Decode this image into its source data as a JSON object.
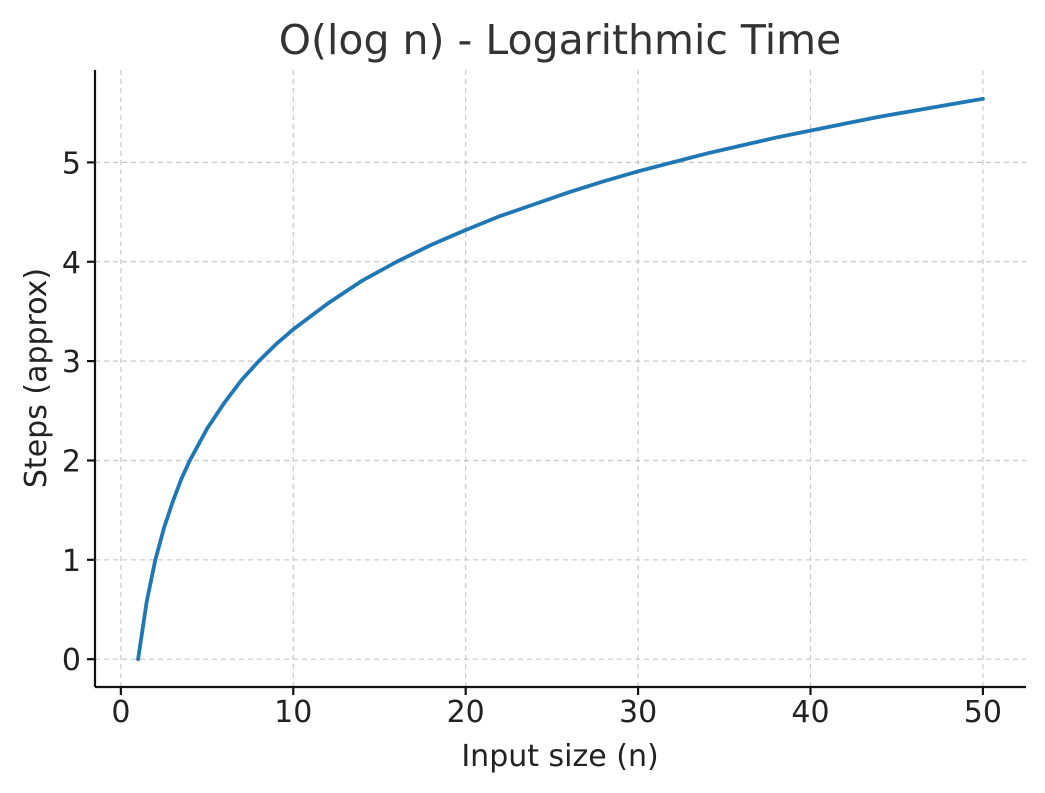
{
  "chart_data": {
    "type": "line",
    "title": "O(log n) - Logarithmic Time",
    "xlabel": "Input size (n)",
    "ylabel": "Steps (approx)",
    "xlim": [
      -1.5,
      52.5
    ],
    "ylim": [
      -0.28,
      5.93
    ],
    "xticks": [
      0,
      10,
      20,
      30,
      40,
      50
    ],
    "yticks": [
      0,
      1,
      2,
      3,
      4,
      5
    ],
    "grid": true,
    "legend": "none",
    "series": [
      {
        "color": "#1f77b4",
        "x": [
          1,
          1.5,
          2,
          2.5,
          3,
          3.5,
          4,
          5,
          6,
          7,
          8,
          9,
          10,
          12,
          14,
          16,
          18,
          20,
          22,
          24,
          26,
          28,
          30,
          32,
          34,
          36,
          38,
          40,
          42,
          44,
          46,
          48,
          50
        ],
        "y": [
          0,
          0.58,
          1.0,
          1.32,
          1.58,
          1.81,
          2.0,
          2.32,
          2.58,
          2.81,
          3.0,
          3.17,
          3.32,
          3.58,
          3.81,
          4.0,
          4.17,
          4.32,
          4.46,
          4.58,
          4.7,
          4.81,
          4.91,
          5.0,
          5.09,
          5.17,
          5.25,
          5.32,
          5.39,
          5.46,
          5.52,
          5.58,
          5.64
        ]
      }
    ]
  }
}
